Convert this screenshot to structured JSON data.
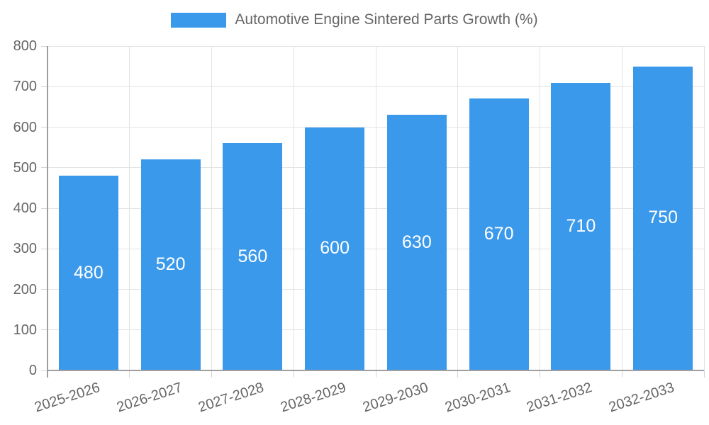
{
  "legend": {
    "label": "Automotive Engine Sintered Parts Growth (%)"
  },
  "colors": {
    "bar": "#3B99EC",
    "grid": "#e3e3e3",
    "axis": "#9e9e9e",
    "tick": "#d4d4d4",
    "label_text": "#666666",
    "bar_label_text": "#ffffff"
  },
  "chart_data": {
    "type": "bar",
    "title": "Automotive Engine Sintered Parts Growth (%)",
    "categories": [
      "2025-2026",
      "2026-2027",
      "2027-2028",
      "2028-2029",
      "2029-2030",
      "2030-2031",
      "2031-2032",
      "2032-2033"
    ],
    "values": [
      480,
      520,
      560,
      600,
      630,
      670,
      710,
      750
    ],
    "series_name": "Automotive Engine Sintered Parts Growth (%)",
    "xlabel": "",
    "ylabel": "",
    "ylim": [
      0,
      800
    ],
    "yticks": [
      0,
      100,
      200,
      300,
      400,
      500,
      600,
      700,
      800
    ],
    "grid": true,
    "legend_position": "top",
    "bar_labels_inside": true
  }
}
